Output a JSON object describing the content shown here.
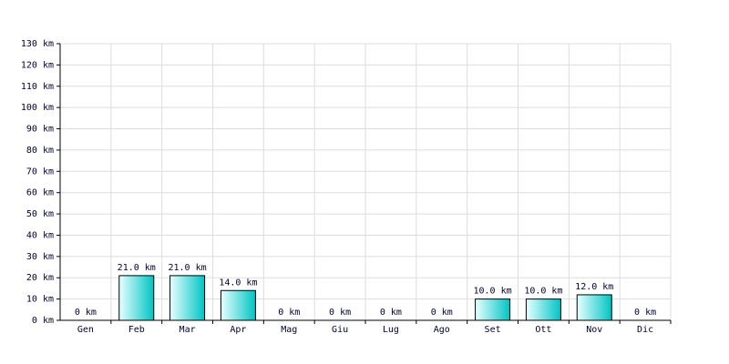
{
  "chart_data": {
    "type": "bar",
    "categories": [
      "Gen",
      "Feb",
      "Mar",
      "Apr",
      "Mag",
      "Giu",
      "Lug",
      "Ago",
      "Set",
      "Ott",
      "Nov",
      "Dic"
    ],
    "values": [
      0,
      21,
      21,
      14,
      0,
      0,
      0,
      0,
      10,
      10,
      12,
      0
    ],
    "value_labels": [
      "0 km",
      "21.0 km",
      "21.0 km",
      "14.0 km",
      "0 km",
      "0 km",
      "0 km",
      "0 km",
      "10.0 km",
      "10.0 km",
      "12.0 km",
      "0 km"
    ],
    "color": "#00c4c4",
    "ylim": [
      0,
      130
    ],
    "yticks": [
      {
        "value": 0,
        "label": "0 km"
      },
      {
        "value": 10,
        "label": "10 km"
      },
      {
        "value": 20,
        "label": "20 km"
      },
      {
        "value": 30,
        "label": "30 km"
      },
      {
        "value": 40,
        "label": "40 km"
      },
      {
        "value": 50,
        "label": "50 km"
      },
      {
        "value": 60,
        "label": "60 km"
      },
      {
        "value": 70,
        "label": "70 km"
      },
      {
        "value": 80,
        "label": "80 km"
      },
      {
        "value": 90,
        "label": "90 km"
      },
      {
        "value": 100,
        "label": "100 km"
      },
      {
        "value": 110,
        "label": "110 km"
      },
      {
        "value": 120,
        "label": "120 km"
      },
      {
        "value": 130,
        "label": "130 km"
      }
    ],
    "grid": true
  }
}
